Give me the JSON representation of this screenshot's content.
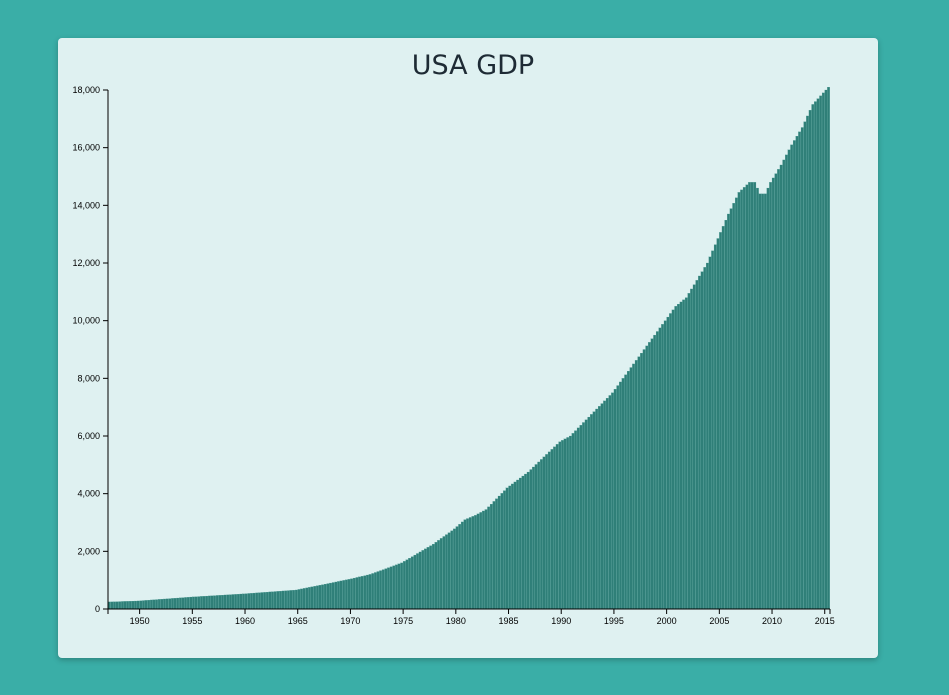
{
  "colors": {
    "background": "#3aaea7",
    "card": "#dff1f1",
    "bar": "#2f7f78",
    "bar_edge": "#3d938b",
    "axis": "#000000"
  },
  "chart_data": {
    "type": "bar",
    "title": "USA GDP",
    "xlabel": "",
    "ylabel": "",
    "ylim": [
      0,
      18000
    ],
    "xlim": [
      1947.0,
      2015.5
    ],
    "grid": false,
    "y_ticks": [
      0,
      2000,
      4000,
      6000,
      8000,
      10000,
      12000,
      14000,
      16000,
      18000
    ],
    "y_tick_labels": [
      "0",
      "2,000",
      "4,000",
      "6,000",
      "8,000",
      "10,000",
      "12,000",
      "14,000",
      "16,000",
      "18,000"
    ],
    "x_ticks": [
      1950,
      1955,
      1960,
      1965,
      1970,
      1975,
      1980,
      1985,
      1990,
      1995,
      2000,
      2005,
      2010,
      2015
    ],
    "x_tick_labels": [
      "1950",
      "1955",
      "1960",
      "1965",
      "1970",
      "1975",
      "1980",
      "1985",
      "1990",
      "1995",
      "2000",
      "2005",
      "2010",
      "2015"
    ],
    "series": [
      {
        "frequency": "quarterly",
        "start": "1947 Q1",
        "anchors": [
          {
            "x": 1947,
            "y": 243
          },
          {
            "x": 1950,
            "y": 280
          },
          {
            "x": 1955,
            "y": 415
          },
          {
            "x": 1960,
            "y": 526
          },
          {
            "x": 1965,
            "y": 660
          },
          {
            "x": 1970,
            "y": 1030
          },
          {
            "x": 1972,
            "y": 1200
          },
          {
            "x": 1975,
            "y": 1600
          },
          {
            "x": 1978,
            "y": 2250
          },
          {
            "x": 1980,
            "y": 2780
          },
          {
            "x": 1981,
            "y": 3100
          },
          {
            "x": 1982,
            "y": 3250
          },
          {
            "x": 1983,
            "y": 3450
          },
          {
            "x": 1985,
            "y": 4200
          },
          {
            "x": 1987,
            "y": 4750
          },
          {
            "x": 1990,
            "y": 5800
          },
          {
            "x": 1991,
            "y": 6000
          },
          {
            "x": 1995,
            "y": 7500
          },
          {
            "x": 2000,
            "y": 10000
          },
          {
            "x": 2001,
            "y": 10500
          },
          {
            "x": 2002,
            "y": 10800
          },
          {
            "x": 2004,
            "y": 12000
          },
          {
            "x": 2006,
            "y": 13700
          },
          {
            "x": 2007,
            "y": 14450
          },
          {
            "x": 2008,
            "y": 14800
          },
          {
            "x": 2008.5,
            "y": 14800
          },
          {
            "x": 2009,
            "y": 14400
          },
          {
            "x": 2009.5,
            "y": 14400
          },
          {
            "x": 2010,
            "y": 14800
          },
          {
            "x": 2011,
            "y": 15400
          },
          {
            "x": 2012,
            "y": 16100
          },
          {
            "x": 2013,
            "y": 16700
          },
          {
            "x": 2014,
            "y": 17500
          },
          {
            "x": 2015,
            "y": 17900
          },
          {
            "x": 2015.5,
            "y": 18100
          }
        ]
      }
    ]
  }
}
